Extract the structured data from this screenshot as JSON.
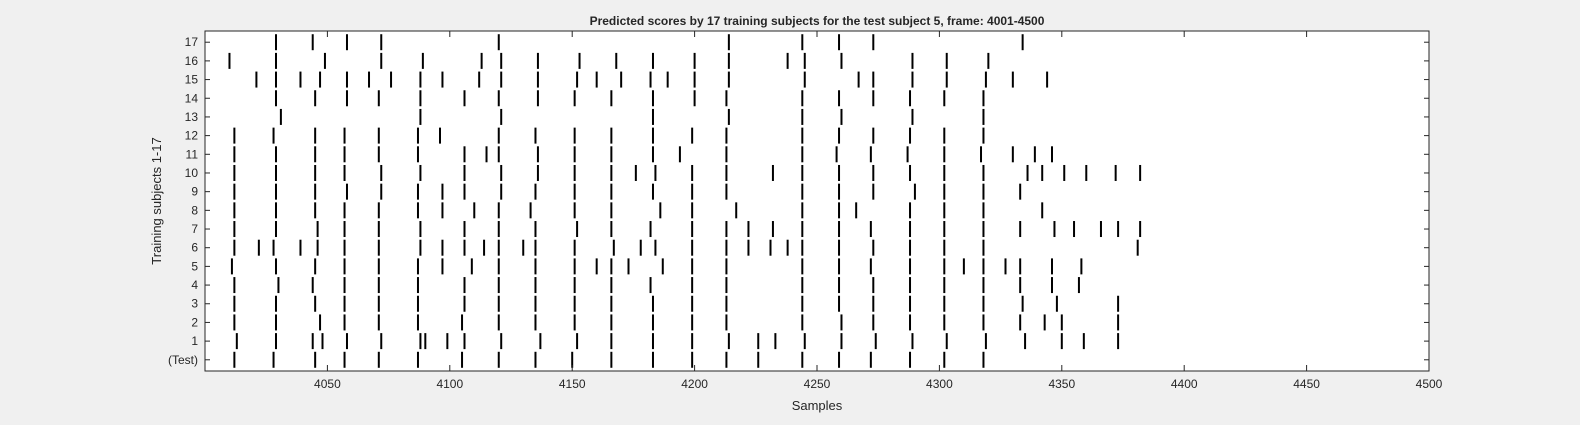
{
  "chart_data": {
    "type": "raster",
    "title": "Predicted scores by 17 training subjects for the test subject 5, frame: 4001-4500",
    "xlabel": "Samples",
    "ylabel": "Training subjects 1-17",
    "xlim": [
      4001,
      4500
    ],
    "x_ticks": [
      4050,
      4100,
      4150,
      4200,
      4250,
      4300,
      4350,
      4400,
      4450,
      4500
    ],
    "x_tick_labels": [
      "4050",
      "4100",
      "4150",
      "4200",
      "4250",
      "4300",
      "4350",
      "4400",
      "4450",
      "4500"
    ],
    "grid": false,
    "legend": "none",
    "rows": [
      {
        "label": "(Test)",
        "events": [
          4012,
          4028,
          4045,
          4057,
          4071,
          4087,
          4105,
          4120,
          4135,
          4150,
          4166,
          4183,
          4199,
          4213,
          4226,
          4244,
          4259,
          4272,
          4288,
          4302,
          4318
        ]
      },
      {
        "label": "1",
        "events": [
          4013,
          4029,
          4044,
          4048,
          4058,
          4072,
          4088,
          4090,
          4099,
          4106,
          4121,
          4137,
          4152,
          4166,
          4183,
          4199,
          4214,
          4226,
          4233,
          4245,
          4260,
          4274,
          4289,
          4303,
          4319,
          4335,
          4350,
          4359,
          4373
        ]
      },
      {
        "label": "2",
        "events": [
          4012,
          4029,
          4047,
          4057,
          4071,
          4087,
          4105,
          4120,
          4135,
          4151,
          4166,
          4183,
          4199,
          4213,
          4244,
          4260,
          4273,
          4288,
          4302,
          4318,
          4333,
          4343,
          4350,
          4373
        ]
      },
      {
        "label": "3",
        "events": [
          4012,
          4029,
          4045,
          4057,
          4071,
          4087,
          4106,
          4120,
          4135,
          4151,
          4166,
          4183,
          4199,
          4213,
          4244,
          4259,
          4273,
          4288,
          4302,
          4318,
          4334,
          4348,
          4373
        ]
      },
      {
        "label": "4",
        "events": [
          4012,
          4030,
          4044,
          4057,
          4071,
          4087,
          4106,
          4120,
          4135,
          4151,
          4166,
          4182,
          4199,
          4213,
          4244,
          4259,
          4273,
          4288,
          4302,
          4318,
          4333,
          4346,
          4357
        ]
      },
      {
        "label": "5",
        "events": [
          4011,
          4029,
          4045,
          4057,
          4071,
          4087,
          4097,
          4109,
          4120,
          4135,
          4151,
          4160,
          4166,
          4173,
          4187,
          4199,
          4213,
          4244,
          4259,
          4272,
          4288,
          4302,
          4310,
          4318,
          4327,
          4333,
          4346,
          4358
        ]
      },
      {
        "label": "6",
        "events": [
          4012,
          4022,
          4028,
          4039,
          4046,
          4057,
          4071,
          4088,
          4097,
          4106,
          4114,
          4120,
          4130,
          4135,
          4151,
          4167,
          4178,
          4184,
          4199,
          4213,
          4222,
          4231,
          4238,
          4244,
          4259,
          4273,
          4288,
          4302,
          4318,
          4381
        ]
      },
      {
        "label": "7",
        "events": [
          4012,
          4029,
          4046,
          4057,
          4071,
          4088,
          4106,
          4120,
          4135,
          4152,
          4166,
          4182,
          4199,
          4213,
          4222,
          4232,
          4244,
          4259,
          4272,
          4288,
          4302,
          4318,
          4333,
          4347,
          4355,
          4366,
          4373,
          4382
        ]
      },
      {
        "label": "8",
        "events": [
          4012,
          4029,
          4045,
          4057,
          4071,
          4087,
          4097,
          4110,
          4120,
          4133,
          4151,
          4166,
          4186,
          4199,
          4217,
          4244,
          4259,
          4266,
          4288,
          4302,
          4318,
          4342
        ]
      },
      {
        "label": "9",
        "events": [
          4012,
          4029,
          4045,
          4058,
          4072,
          4087,
          4097,
          4106,
          4121,
          4135,
          4151,
          4166,
          4183,
          4199,
          4213,
          4244,
          4259,
          4273,
          4290,
          4302,
          4318,
          4333
        ]
      },
      {
        "label": "10",
        "events": [
          4012,
          4029,
          4045,
          4057,
          4072,
          4088,
          4106,
          4121,
          4136,
          4151,
          4166,
          4176,
          4184,
          4199,
          4213,
          4232,
          4244,
          4259,
          4273,
          4288,
          4302,
          4318,
          4336,
          4342,
          4351,
          4360,
          4372,
          4382
        ]
      },
      {
        "label": "11",
        "events": [
          4012,
          4029,
          4045,
          4057,
          4071,
          4087,
          4106,
          4115,
          4120,
          4136,
          4151,
          4166,
          4183,
          4194,
          4213,
          4244,
          4258,
          4272,
          4287,
          4302,
          4317,
          4330,
          4339,
          4346
        ]
      },
      {
        "label": "12",
        "events": [
          4012,
          4028,
          4045,
          4057,
          4071,
          4087,
          4096,
          4120,
          4135,
          4151,
          4166,
          4183,
          4199,
          4213,
          4244,
          4259,
          4273,
          4288,
          4302,
          4318
        ]
      },
      {
        "label": "13",
        "events": [
          4031,
          4088,
          4121,
          4183,
          4214,
          4244,
          4260,
          4289,
          4318
        ]
      },
      {
        "label": "14",
        "events": [
          4029,
          4045,
          4058,
          4071,
          4088,
          4106,
          4120,
          4136,
          4151,
          4166,
          4183,
          4200,
          4213,
          4244,
          4259,
          4273,
          4288,
          4302,
          4318
        ]
      },
      {
        "label": "15",
        "events": [
          4021,
          4029,
          4039,
          4047,
          4058,
          4067,
          4076,
          4088,
          4097,
          4112,
          4121,
          4136,
          4152,
          4160,
          4170,
          4182,
          4189,
          4200,
          4214,
          4245,
          4267,
          4273,
          4289,
          4303,
          4319,
          4330,
          4344
        ]
      },
      {
        "label": "16",
        "events": [
          4010,
          4029,
          4049,
          4072,
          4089,
          4113,
          4121,
          4136,
          4153,
          4168,
          4183,
          4200,
          4214,
          4238,
          4245,
          4260,
          4289,
          4303,
          4320
        ]
      },
      {
        "label": "17",
        "events": [
          4029,
          4044,
          4058,
          4072,
          4120,
          4214,
          4244,
          4259,
          4273,
          4334
        ]
      }
    ]
  }
}
